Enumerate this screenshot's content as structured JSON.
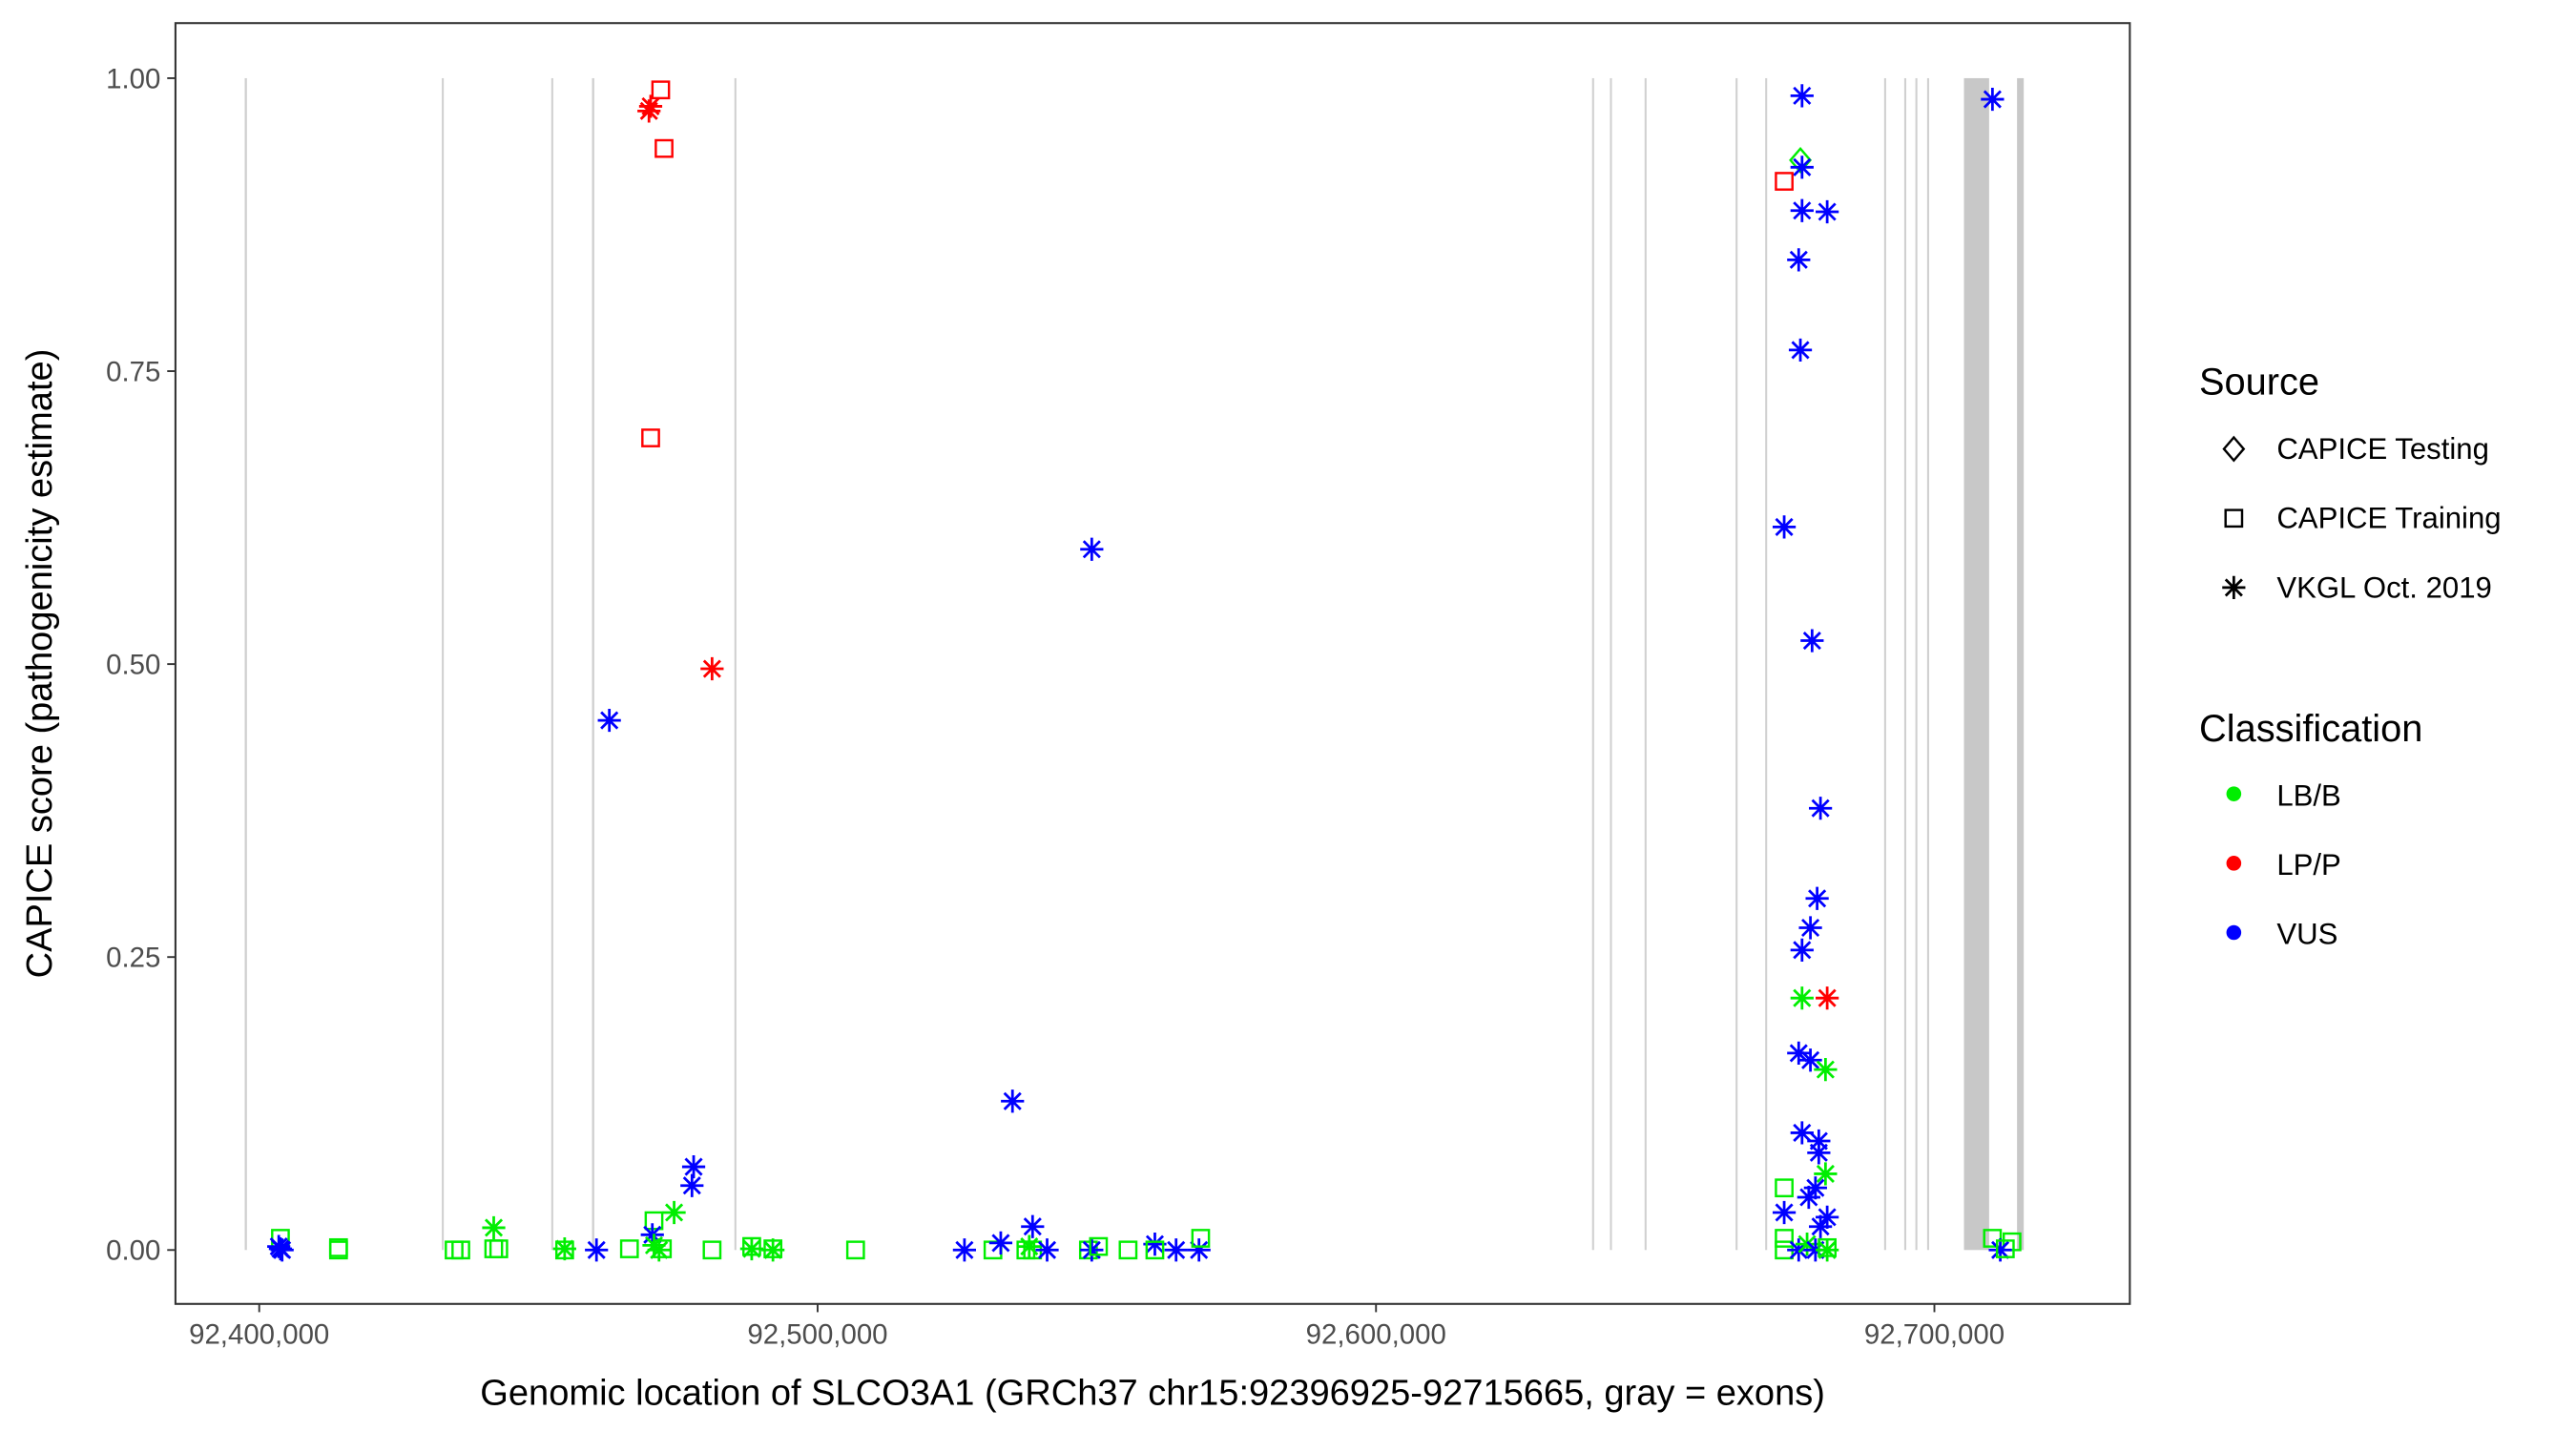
{
  "chart_data": {
    "type": "scatter",
    "title": "",
    "xlabel": "Genomic location of SLCO3A1 (GRCh37 chr15:92396925-92715665, gray = exons)",
    "ylabel": "CAPICE score (pathogenicity estimate)",
    "xlim": [
      92385000,
      92735000
    ],
    "ylim": [
      -0.046,
      1.047
    ],
    "x_ticks": [
      92400000,
      92500000,
      92600000,
      92700000
    ],
    "x_tick_labels": [
      "92,400,000",
      "92,500,000",
      "92,600,000",
      "92,700,000"
    ],
    "y_ticks": [
      0,
      0.25,
      0.5,
      0.75,
      1.0
    ],
    "y_tick_labels": [
      "0.00",
      "0.25",
      "0.50",
      "0.75",
      "1.00"
    ],
    "grid": false,
    "exons": [
      [
        92397400,
        92397800
      ],
      [
        92432700,
        92432900
      ],
      [
        92452300,
        92452500
      ],
      [
        92459600,
        92460000
      ],
      [
        92485100,
        92485300
      ],
      [
        92638700,
        92638900
      ],
      [
        92641900,
        92642100
      ],
      [
        92648100,
        92648300
      ],
      [
        92664400,
        92664600
      ],
      [
        92669700,
        92669900
      ],
      [
        92691000,
        92691200
      ],
      [
        92694600,
        92694800
      ],
      [
        92696600,
        92696800
      ],
      [
        92698700,
        92698900
      ],
      [
        92705300,
        92709800
      ],
      [
        92714800,
        92716000
      ]
    ],
    "legend": {
      "placement": "right",
      "source_title": "Source",
      "source_items": [
        {
          "label": "CAPICE Testing",
          "shape": "diamond"
        },
        {
          "label": "CAPICE Training",
          "shape": "square"
        },
        {
          "label": "VKGL Oct. 2019",
          "shape": "asterisk"
        }
      ],
      "class_title": "Classification",
      "class_items": [
        {
          "label": "LB/B",
          "color": "#00ee00"
        },
        {
          "label": "LP/P",
          "color": "#ff0000"
        },
        {
          "label": "VUS",
          "color": "#0000ff"
        }
      ]
    },
    "points": [
      [
        92403800,
        0.01,
        "CAPICE Training",
        "LB/B"
      ],
      [
        92403800,
        0.001,
        "VKGL Oct. 2019",
        "VUS"
      ],
      [
        92403500,
        0.003,
        "VKGL Oct. 2019",
        "VUS"
      ],
      [
        92404100,
        0.0,
        "VKGL Oct. 2019",
        "VUS"
      ],
      [
        92414200,
        0.002,
        "CAPICE Training",
        "LB/B"
      ],
      [
        92414200,
        0.0,
        "CAPICE Training",
        "LB/B"
      ],
      [
        92434900,
        0.0,
        "CAPICE Training",
        "LB/B"
      ],
      [
        92436100,
        0.0,
        "CAPICE Training",
        "LB/B"
      ],
      [
        92442000,
        0.019,
        "VKGL Oct. 2019",
        "LB/B"
      ],
      [
        92442000,
        0.001,
        "CAPICE Training",
        "LB/B"
      ],
      [
        92442900,
        0.001,
        "CAPICE Training",
        "LB/B"
      ],
      [
        92454700,
        0.0,
        "CAPICE Training",
        "LB/B"
      ],
      [
        92454700,
        0.001,
        "VKGL Oct. 2019",
        "LB/B"
      ],
      [
        92460400,
        0.0,
        "VKGL Oct. 2019",
        "VUS"
      ],
      [
        92462700,
        0.452,
        "VKGL Oct. 2019",
        "VUS"
      ],
      [
        92466300,
        0.001,
        "CAPICE Training",
        "LB/B"
      ],
      [
        92469800,
        0.972,
        "VKGL Oct. 2019",
        "LP/P"
      ],
      [
        92470100,
        0.976,
        "VKGL Oct. 2019",
        "LP/P"
      ],
      [
        92470100,
        0.693,
        "CAPICE Training",
        "LP/P"
      ],
      [
        92471900,
        0.99,
        "CAPICE Training",
        "LP/P"
      ],
      [
        92472500,
        0.94,
        "CAPICE Training",
        "LP/P"
      ],
      [
        92481100,
        0.496,
        "VKGL Oct. 2019",
        "LP/P"
      ],
      [
        92470700,
        0.025,
        "CAPICE Training",
        "LB/B"
      ],
      [
        92470400,
        0.013,
        "VKGL Oct. 2019",
        "VUS"
      ],
      [
        92471600,
        0.0,
        "VKGL Oct. 2019",
        "LB/B"
      ],
      [
        92472200,
        0.001,
        "CAPICE Training",
        "LB/B"
      ],
      [
        92470700,
        0.004,
        "VKGL Oct. 2019",
        "LB/B"
      ],
      [
        92474300,
        0.032,
        "VKGL Oct. 2019",
        "LB/B"
      ],
      [
        92477800,
        0.071,
        "VKGL Oct. 2019",
        "VUS"
      ],
      [
        92477500,
        0.055,
        "VKGL Oct. 2019",
        "VUS"
      ],
      [
        92481100,
        0.0,
        "CAPICE Training",
        "LB/B"
      ],
      [
        92488200,
        0.003,
        "CAPICE Training",
        "LB/B"
      ],
      [
        92488200,
        0.001,
        "VKGL Oct. 2019",
        "LB/B"
      ],
      [
        92492000,
        0.0,
        "VKGL Oct. 2019",
        "LB/B"
      ],
      [
        92492000,
        0.001,
        "CAPICE Training",
        "LB/B"
      ],
      [
        92506800,
        0.0,
        "CAPICE Training",
        "LB/B"
      ],
      [
        92526300,
        0.0,
        "VKGL Oct. 2019",
        "VUS"
      ],
      [
        92531400,
        0.0,
        "CAPICE Training",
        "LB/B"
      ],
      [
        92532800,
        0.006,
        "VKGL Oct. 2019",
        "VUS"
      ],
      [
        92534900,
        0.127,
        "VKGL Oct. 2019",
        "VUS"
      ],
      [
        92537300,
        0.0,
        "CAPICE Training",
        "LB/B"
      ],
      [
        92537900,
        0.003,
        "VKGL Oct. 2019",
        "LB/B"
      ],
      [
        92538500,
        0.02,
        "VKGL Oct. 2019",
        "VUS"
      ],
      [
        92538500,
        0.0,
        "CAPICE Training",
        "LB/B"
      ],
      [
        92541100,
        0.0,
        "VKGL Oct. 2019",
        "VUS"
      ],
      [
        92549100,
        0.598,
        "VKGL Oct. 2019",
        "VUS"
      ],
      [
        92548500,
        0.0,
        "CAPICE Training",
        "LB/B"
      ],
      [
        92549100,
        0.0,
        "VKGL Oct. 2019",
        "VUS"
      ],
      [
        92550300,
        0.003,
        "CAPICE Training",
        "LB/B"
      ],
      [
        92555600,
        0.0,
        "CAPICE Training",
        "LB/B"
      ],
      [
        92560400,
        0.005,
        "VKGL Oct. 2019",
        "VUS"
      ],
      [
        92560400,
        0.0,
        "CAPICE Training",
        "LB/B"
      ],
      [
        92564200,
        0.0,
        "VKGL Oct. 2019",
        "VUS"
      ],
      [
        92568300,
        0.0,
        "VKGL Oct. 2019",
        "VUS"
      ],
      [
        92568600,
        0.01,
        "CAPICE Training",
        "LB/B"
      ],
      [
        92676300,
        0.985,
        "VKGL Oct. 2019",
        "VUS"
      ],
      [
        92676000,
        0.93,
        "CAPICE Testing",
        "LB/B"
      ],
      [
        92676300,
        0.924,
        "VKGL Oct. 2019",
        "VUS"
      ],
      [
        92673100,
        0.912,
        "CAPICE Training",
        "LP/P"
      ],
      [
        92676300,
        0.887,
        "VKGL Oct. 2019",
        "VUS"
      ],
      [
        92680800,
        0.886,
        "VKGL Oct. 2019",
        "VUS"
      ],
      [
        92675700,
        0.845,
        "VKGL Oct. 2019",
        "VUS"
      ],
      [
        92676000,
        0.768,
        "VKGL Oct. 2019",
        "VUS"
      ],
      [
        92673100,
        0.617,
        "VKGL Oct. 2019",
        "VUS"
      ],
      [
        92678100,
        0.52,
        "VKGL Oct. 2019",
        "VUS"
      ],
      [
        92679600,
        0.377,
        "VKGL Oct. 2019",
        "VUS"
      ],
      [
        92679000,
        0.3,
        "VKGL Oct. 2019",
        "VUS"
      ],
      [
        92677800,
        0.275,
        "VKGL Oct. 2019",
        "VUS"
      ],
      [
        92676300,
        0.256,
        "VKGL Oct. 2019",
        "VUS"
      ],
      [
        92676300,
        0.215,
        "VKGL Oct. 2019",
        "LB/B"
      ],
      [
        92680800,
        0.215,
        "VKGL Oct. 2019",
        "LP/P"
      ],
      [
        92675700,
        0.168,
        "VKGL Oct. 2019",
        "VUS"
      ],
      [
        92677800,
        0.162,
        "VKGL Oct. 2019",
        "VUS"
      ],
      [
        92680500,
        0.154,
        "VKGL Oct. 2019",
        "LB/B"
      ],
      [
        92676300,
        0.1,
        "VKGL Oct. 2019",
        "VUS"
      ],
      [
        92679300,
        0.093,
        "VKGL Oct. 2019",
        "VUS"
      ],
      [
        92679300,
        0.083,
        "VKGL Oct. 2019",
        "VUS"
      ],
      [
        92680500,
        0.065,
        "VKGL Oct. 2019",
        "LB/B"
      ],
      [
        92673100,
        0.053,
        "CAPICE Training",
        "LB/B"
      ],
      [
        92678700,
        0.053,
        "VKGL Oct. 2019",
        "VUS"
      ],
      [
        92677500,
        0.045,
        "VKGL Oct. 2019",
        "VUS"
      ],
      [
        92673100,
        0.032,
        "VKGL Oct. 2019",
        "VUS"
      ],
      [
        92680800,
        0.028,
        "VKGL Oct. 2019",
        "VUS"
      ],
      [
        92679600,
        0.02,
        "VKGL Oct. 2019",
        "VUS"
      ],
      [
        92673100,
        0.01,
        "CAPICE Training",
        "LB/B"
      ],
      [
        92673100,
        0.0,
        "CAPICE Training",
        "LB/B"
      ],
      [
        92675700,
        0.0,
        "VKGL Oct. 2019",
        "VUS"
      ],
      [
        92677200,
        0.005,
        "VKGL Oct. 2019",
        "LB/B"
      ],
      [
        92678700,
        0.0,
        "VKGL Oct. 2019",
        "VUS"
      ],
      [
        92680800,
        0.0,
        "VKGL Oct. 2019",
        "LB/B"
      ],
      [
        92680800,
        0.002,
        "CAPICE Training",
        "LB/B"
      ],
      [
        92710400,
        0.982,
        "VKGL Oct. 2019",
        "VUS"
      ],
      [
        92710400,
        0.01,
        "CAPICE Training",
        "LB/B"
      ],
      [
        92713900,
        0.007,
        "CAPICE Training",
        "LB/B"
      ],
      [
        92711800,
        0.0,
        "VKGL Oct. 2019",
        "VUS"
      ],
      [
        92712700,
        0.001,
        "CAPICE Training",
        "LB/B"
      ]
    ]
  }
}
